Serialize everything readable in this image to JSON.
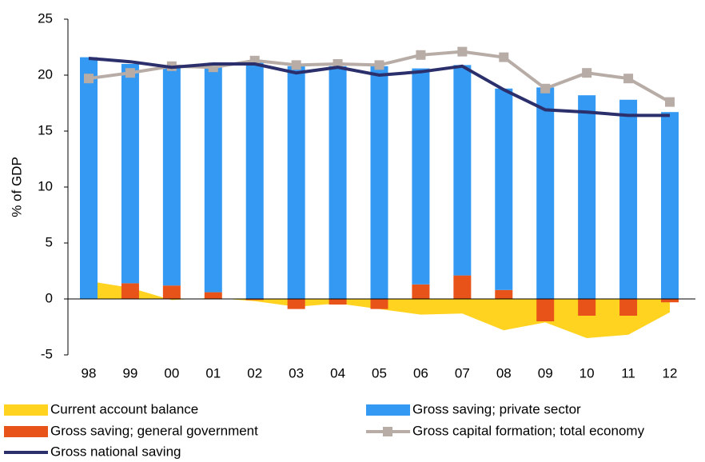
{
  "chart_data": {
    "type": "combo",
    "y_label": "% of GDP",
    "categories": [
      "98",
      "99",
      "00",
      "01",
      "02",
      "03",
      "04",
      "05",
      "06",
      "07",
      "08",
      "09",
      "10",
      "11",
      "12"
    ],
    "ylim": [
      -5,
      25
    ],
    "yticks": [
      -5,
      0,
      5,
      10,
      15,
      20,
      25
    ],
    "series": [
      {
        "name": "Current account balance",
        "kind": "area",
        "color": "#FFD320",
        "values": [
          1.6,
          1.0,
          -0.1,
          0.1,
          -0.2,
          -0.7,
          -0.4,
          -0.9,
          -1.4,
          -1.3,
          -2.8,
          -2.1,
          -3.5,
          -3.2,
          -1.2
        ]
      },
      {
        "name": "Gross saving; private sector",
        "kind": "bar",
        "color": "#3399F3",
        "values": [
          21.6,
          19.6,
          19.6,
          20.4,
          21.2,
          20.8,
          20.8,
          20.8,
          19.3,
          18.8,
          18.0,
          18.9,
          18.2,
          17.8,
          16.7
        ]
      },
      {
        "name": "Gross saving; general government",
        "kind": "bar",
        "color": "#E8531A",
        "values": [
          0.0,
          1.4,
          1.2,
          0.6,
          -0.1,
          -0.9,
          -0.5,
          -0.9,
          1.3,
          2.1,
          0.8,
          -2.0,
          -1.5,
          -1.5,
          -0.3
        ]
      },
      {
        "name": "Gross capital formation; total economy",
        "kind": "line",
        "marker": "square",
        "color": "#B8ACA6",
        "values": [
          19.7,
          20.2,
          20.8,
          20.7,
          21.3,
          20.9,
          21.0,
          20.9,
          21.8,
          22.1,
          21.6,
          18.8,
          20.2,
          19.7,
          17.6
        ]
      },
      {
        "name": "Gross national saving",
        "kind": "line",
        "color": "#2B2F6B",
        "values": [
          21.5,
          21.2,
          20.7,
          21.0,
          21.0,
          20.2,
          20.7,
          20.0,
          20.3,
          20.8,
          18.7,
          16.9,
          16.7,
          16.4,
          16.4
        ]
      }
    ]
  }
}
